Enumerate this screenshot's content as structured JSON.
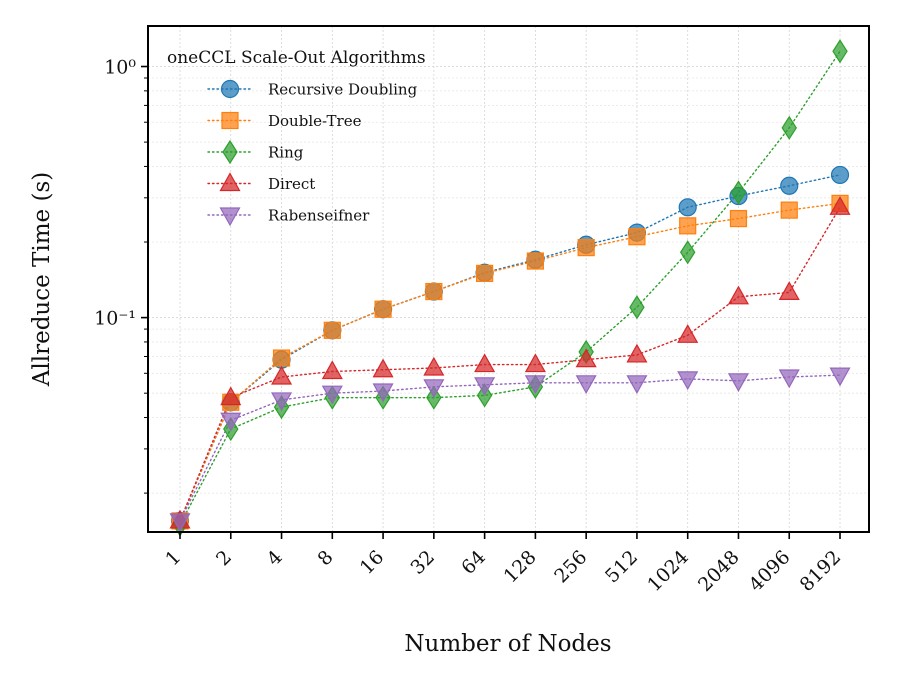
{
  "chart_data": {
    "type": "line",
    "title": "",
    "xlabel": "Number of Nodes",
    "ylabel": "Allreduce Time (s)",
    "yscale": "log",
    "ylim": [
      0.014,
      1.45
    ],
    "grid": true,
    "legend_title": "oneCCL Scale-Out Algorithms",
    "legend_position": "top-left",
    "categories": [
      "1",
      "2",
      "4",
      "8",
      "16",
      "32",
      "64",
      "128",
      "256",
      "512",
      "1024",
      "2048",
      "4096",
      "8192"
    ],
    "y_ticks": [
      {
        "value": 0.1,
        "label": "10⁻¹"
      },
      {
        "value": 1,
        "label": "10⁰"
      }
    ],
    "series": [
      {
        "name": "Recursive Doubling",
        "color": "#1f77b4",
        "marker": "circle",
        "values": [
          0.0155,
          0.046,
          0.068,
          0.089,
          0.108,
          0.127,
          0.151,
          0.17,
          0.195,
          0.218,
          0.275,
          0.305,
          0.335,
          0.37
        ]
      },
      {
        "name": "Double-Tree",
        "color": "#ff7f0e",
        "marker": "square",
        "values": [
          0.0155,
          0.046,
          0.069,
          0.089,
          0.108,
          0.127,
          0.15,
          0.168,
          0.19,
          0.21,
          0.232,
          0.248,
          0.268,
          0.285
        ]
      },
      {
        "name": "Ring",
        "color": "#2ca02c",
        "marker": "diamond",
        "values": [
          0.015,
          0.036,
          0.044,
          0.048,
          0.048,
          0.048,
          0.049,
          0.053,
          0.073,
          0.11,
          0.182,
          0.315,
          0.57,
          1.15
        ]
      },
      {
        "name": "Direct",
        "color": "#d62728",
        "marker": "triangle-up",
        "values": [
          0.0155,
          0.048,
          0.058,
          0.061,
          0.062,
          0.063,
          0.065,
          0.065,
          0.068,
          0.071,
          0.085,
          0.121,
          0.126,
          0.275
        ]
      },
      {
        "name": "Rabenseifner",
        "color": "#9467bd",
        "marker": "triangle-down",
        "values": [
          0.0155,
          0.039,
          0.047,
          0.05,
          0.051,
          0.053,
          0.054,
          0.055,
          0.055,
          0.055,
          0.057,
          0.056,
          0.058,
          0.059
        ]
      }
    ]
  }
}
